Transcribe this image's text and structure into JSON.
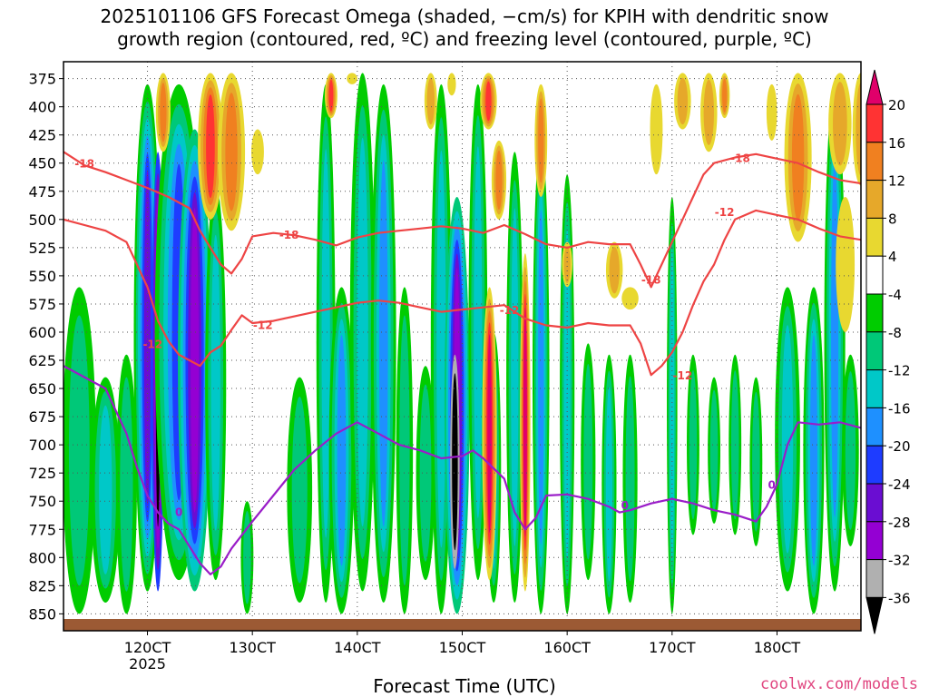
{
  "title_line1": "2025101106 GFS Forecast Omega (shaded, −cm/s) for KPIH with dendritic snow",
  "title_line2": "growth region (contoured, red, ºC) and freezing level (contoured, purple, ºC)",
  "credit": "coolwx.com/models",
  "chart_data": {
    "type": "heatmap",
    "xlabel": "Forecast Time (UTC)",
    "ylabel": "Pressure (hPa)",
    "x_range_hours": [
      112,
      188
    ],
    "y_range_hpa": [
      360,
      865
    ],
    "x_ticks": [
      {
        "hour": 120,
        "label": "120CT",
        "sublabel": "2025"
      },
      {
        "hour": 130,
        "label": "130CT"
      },
      {
        "hour": 140,
        "label": "140CT"
      },
      {
        "hour": 150,
        "label": "150CT"
      },
      {
        "hour": 160,
        "label": "160CT"
      },
      {
        "hour": 170,
        "label": "170CT"
      },
      {
        "hour": 180,
        "label": "180CT"
      }
    ],
    "y_ticks": [
      375,
      400,
      425,
      450,
      475,
      500,
      525,
      550,
      575,
      600,
      625,
      650,
      675,
      700,
      725,
      750,
      775,
      800,
      825,
      850
    ],
    "colorbar": {
      "levels": [
        -36,
        -32,
        -28,
        -24,
        -20,
        -16,
        -12,
        -8,
        -4,
        4,
        8,
        12,
        16,
        20
      ],
      "colors": [
        "#000000",
        "#b0b0b0",
        "#9400d3",
        "#6a0dd2",
        "#1e3cff",
        "#1e90ff",
        "#00c8c8",
        "#00c878",
        "#00cc00",
        "#ffffff",
        "#e8d830",
        "#e6a82a",
        "#f08020",
        "#ff3333",
        "#e0006a"
      ]
    },
    "contours_red": [
      {
        "label": "-18",
        "label_positions": [
          [
            114,
            450
          ],
          [
            133.5,
            513
          ],
          [
            168,
            553
          ],
          [
            176.5,
            445
          ]
        ],
        "points": [
          [
            112,
            440
          ],
          [
            114,
            452
          ],
          [
            116,
            458
          ],
          [
            118,
            465
          ],
          [
            120,
            472
          ],
          [
            122,
            480
          ],
          [
            124,
            490
          ],
          [
            125,
            510
          ],
          [
            126,
            525
          ],
          [
            127,
            540
          ],
          [
            128,
            548
          ],
          [
            129,
            535
          ],
          [
            130,
            515
          ],
          [
            132,
            512
          ],
          [
            134,
            514
          ],
          [
            136,
            518
          ],
          [
            138,
            523
          ],
          [
            140,
            516
          ],
          [
            142,
            512
          ],
          [
            144,
            510
          ],
          [
            146,
            508
          ],
          [
            148,
            506
          ],
          [
            150,
            508
          ],
          [
            152,
            512
          ],
          [
            154,
            505
          ],
          [
            156,
            513
          ],
          [
            158,
            522
          ],
          [
            160,
            525
          ],
          [
            162,
            520
          ],
          [
            164,
            522
          ],
          [
            166,
            522
          ],
          [
            167,
            540
          ],
          [
            168,
            560
          ],
          [
            169,
            540
          ],
          [
            170,
            520
          ],
          [
            171,
            500
          ],
          [
            172,
            480
          ],
          [
            173,
            460
          ],
          [
            174,
            450
          ],
          [
            176,
            445
          ],
          [
            178,
            442
          ],
          [
            180,
            446
          ],
          [
            182,
            450
          ],
          [
            184,
            458
          ],
          [
            186,
            465
          ],
          [
            188,
            468
          ]
        ]
      },
      {
        "label": "-12",
        "label_positions": [
          [
            120.5,
            610
          ],
          [
            131,
            593
          ],
          [
            154.5,
            580
          ],
          [
            175,
            493
          ],
          [
            171,
            638
          ]
        ],
        "points": [
          [
            112,
            500
          ],
          [
            114,
            505
          ],
          [
            116,
            510
          ],
          [
            118,
            520
          ],
          [
            119,
            540
          ],
          [
            120,
            560
          ],
          [
            121,
            590
          ],
          [
            122,
            608
          ],
          [
            123,
            620
          ],
          [
            124,
            625
          ],
          [
            125,
            630
          ],
          [
            126,
            618
          ],
          [
            127,
            612
          ],
          [
            128,
            598
          ],
          [
            129,
            585
          ],
          [
            130,
            592
          ],
          [
            132,
            590
          ],
          [
            134,
            586
          ],
          [
            136,
            582
          ],
          [
            138,
            578
          ],
          [
            140,
            574
          ],
          [
            142,
            572
          ],
          [
            144,
            574
          ],
          [
            146,
            578
          ],
          [
            148,
            582
          ],
          [
            150,
            580
          ],
          [
            152,
            578
          ],
          [
            154,
            576
          ],
          [
            156,
            588
          ],
          [
            158,
            594
          ],
          [
            160,
            596
          ],
          [
            162,
            592
          ],
          [
            164,
            594
          ],
          [
            166,
            594
          ],
          [
            167,
            610
          ],
          [
            168,
            638
          ],
          [
            169,
            630
          ],
          [
            170,
            618
          ],
          [
            171,
            600
          ],
          [
            172,
            576
          ],
          [
            173,
            555
          ],
          [
            174,
            540
          ],
          [
            175,
            518
          ],
          [
            176,
            500
          ],
          [
            178,
            492
          ],
          [
            180,
            496
          ],
          [
            182,
            500
          ],
          [
            184,
            508
          ],
          [
            186,
            515
          ],
          [
            188,
            518
          ]
        ]
      }
    ],
    "contours_purple": [
      {
        "label": "0",
        "label_positions": [
          [
            123,
            759
          ],
          [
            165.5,
            753
          ],
          [
            179.5,
            735
          ]
        ],
        "points": [
          [
            112,
            630
          ],
          [
            114,
            640
          ],
          [
            116,
            650
          ],
          [
            118,
            690
          ],
          [
            119,
            720
          ],
          [
            120,
            745
          ],
          [
            121,
            760
          ],
          [
            122,
            770
          ],
          [
            123,
            775
          ],
          [
            124,
            790
          ],
          [
            125,
            805
          ],
          [
            126,
            815
          ],
          [
            127,
            808
          ],
          [
            128,
            792
          ],
          [
            130,
            768
          ],
          [
            132,
            745
          ],
          [
            134,
            722
          ],
          [
            136,
            705
          ],
          [
            138,
            690
          ],
          [
            140,
            680
          ],
          [
            142,
            690
          ],
          [
            144,
            700
          ],
          [
            146,
            705
          ],
          [
            148,
            712
          ],
          [
            150,
            710
          ],
          [
            151,
            705
          ],
          [
            152,
            712
          ],
          [
            154,
            730
          ],
          [
            155,
            760
          ],
          [
            156,
            775
          ],
          [
            157,
            765
          ],
          [
            158,
            745
          ],
          [
            160,
            744
          ],
          [
            162,
            748
          ],
          [
            164,
            755
          ],
          [
            165,
            760
          ],
          [
            166,
            758
          ],
          [
            168,
            752
          ],
          [
            170,
            748
          ],
          [
            172,
            752
          ],
          [
            174,
            758
          ],
          [
            176,
            762
          ],
          [
            178,
            768
          ],
          [
            179,
            755
          ],
          [
            180,
            735
          ],
          [
            181,
            700
          ],
          [
            182,
            680
          ],
          [
            184,
            682
          ],
          [
            186,
            680
          ],
          [
            188,
            685
          ]
        ]
      }
    ]
  }
}
